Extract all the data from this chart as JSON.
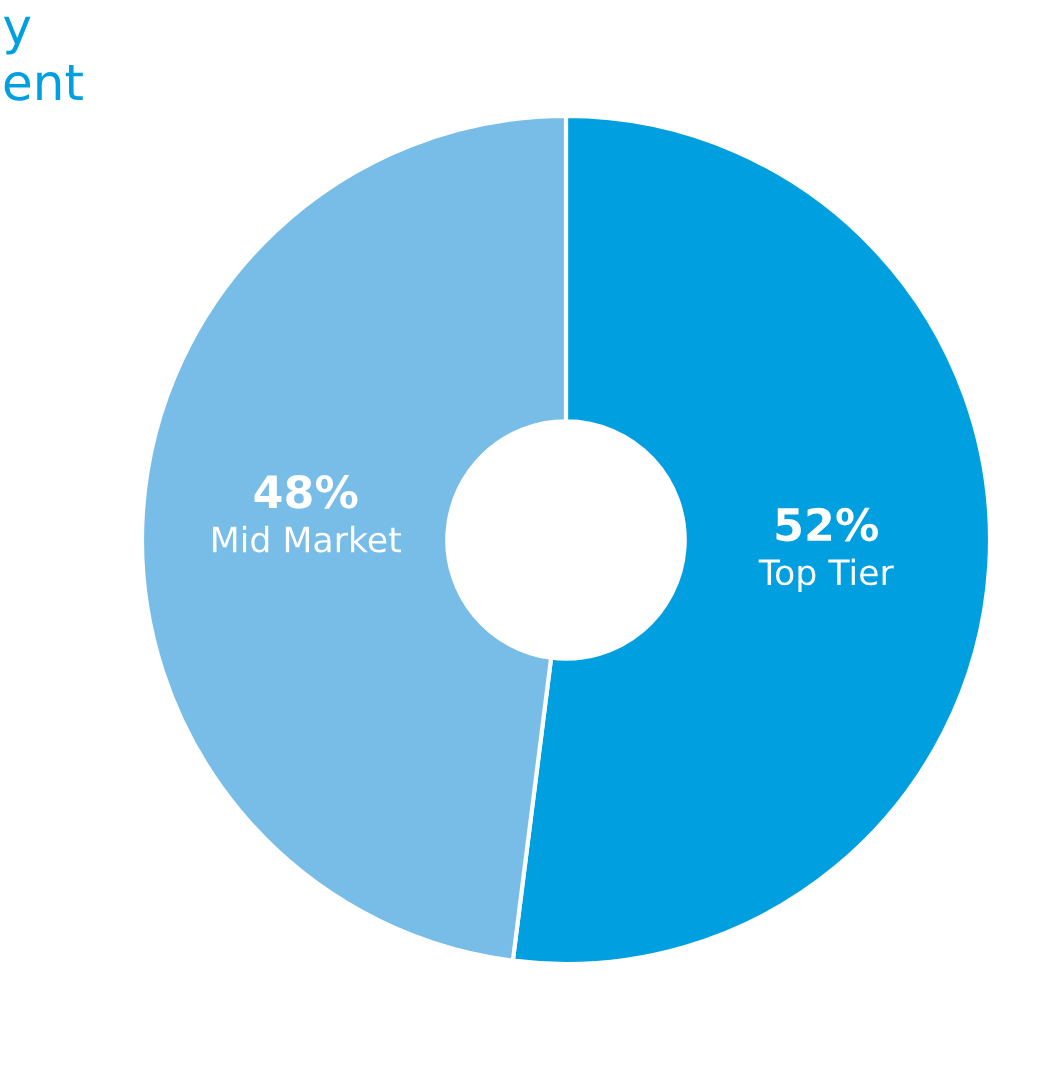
{
  "chart_data": {
    "type": "donut",
    "categories": [
      "Top Tier",
      "Mid Market"
    ],
    "values": [
      52,
      48
    ],
    "colors": [
      "#009fdf",
      "#78bde8"
    ],
    "value_labels": [
      "52%",
      "48%"
    ],
    "annotations": [
      "y",
      "ent"
    ]
  }
}
